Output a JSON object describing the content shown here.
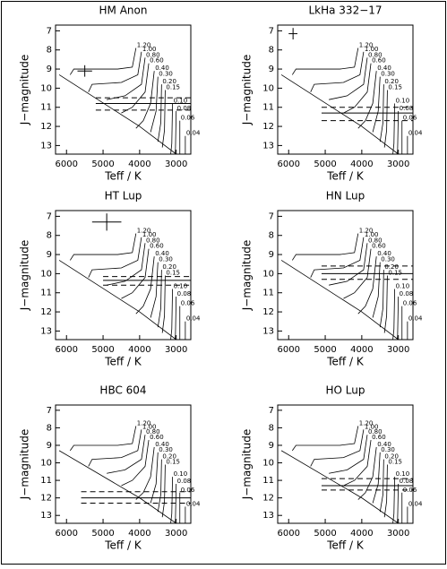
{
  "chart_data": [
    {
      "type": "line",
      "title": "HM Anon",
      "xlabel": "Teff / K",
      "ylabel": "J−magnitude",
      "xlim": [
        6300,
        2600
      ],
      "ylim": [
        13.45,
        6.7
      ],
      "xticks": [
        6000,
        5000,
        4000,
        3000
      ],
      "yticks": [
        7,
        8,
        9,
        10,
        11,
        12,
        13
      ],
      "obs": {
        "teff_from": 5200,
        "j": 10.8,
        "j_range": [
          10.5,
          11.15
        ]
      },
      "cross": {
        "teff": 5500,
        "j": 9.1,
        "teff_err": 200,
        "j_err": 0.3
      }
    },
    {
      "type": "line",
      "title": "LkHa 332−17",
      "xlabel": "Teff / K",
      "ylabel": "J−magnitude",
      "xlim": [
        6300,
        2600
      ],
      "ylim": [
        13.45,
        6.7
      ],
      "xticks": [
        6000,
        5000,
        4000,
        3000
      ],
      "yticks": [
        7,
        8,
        9,
        10,
        11,
        12,
        13
      ],
      "obs": {
        "teff_from": 5100,
        "j": 11.3,
        "j_range": [
          11.0,
          11.7
        ]
      },
      "cross": {
        "teff": 5880,
        "j": 7.15,
        "teff_err": 120,
        "j_err": 0.3
      }
    },
    {
      "type": "line",
      "title": "HT Lup",
      "xlabel": "Teff / K",
      "ylabel": "J−magnitude",
      "xlim": [
        6300,
        2600
      ],
      "ylim": [
        13.45,
        6.7
      ],
      "xticks": [
        6000,
        5000,
        4000,
        3000
      ],
      "yticks": [
        7,
        8,
        9,
        10,
        11,
        12,
        13
      ],
      "obs": {
        "teff_from": 5000,
        "j": 10.35,
        "j_range": [
          10.15,
          10.6
        ]
      },
      "cross": {
        "teff": 4900,
        "j": 7.3,
        "teff_err": 400,
        "j_err": 0.45
      }
    },
    {
      "type": "line",
      "title": "HN Lup",
      "xlabel": "Teff / K",
      "ylabel": "J−magnitude",
      "xlim": [
        6300,
        2600
      ],
      "ylim": [
        13.45,
        6.7
      ],
      "xticks": [
        6000,
        5000,
        4000,
        3000
      ],
      "yticks": [
        7,
        8,
        9,
        10,
        11,
        12,
        13
      ],
      "obs": {
        "teff_from": 5100,
        "j": 10.0,
        "j_range": [
          9.6,
          10.3
        ]
      }
    },
    {
      "type": "line",
      "title": "HBC 604",
      "xlabel": "Teff / K",
      "ylabel": "J−magnitude",
      "xlim": [
        6300,
        2600
      ],
      "ylim": [
        13.45,
        6.7
      ],
      "xticks": [
        6000,
        5000,
        4000,
        3000
      ],
      "yticks": [
        7,
        8,
        9,
        10,
        11,
        12,
        13
      ],
      "obs": {
        "teff_from": 5600,
        "j": 12.0,
        "j_range": [
          11.65,
          12.3
        ]
      }
    },
    {
      "type": "line",
      "title": "HO Lup",
      "xlabel": "Teff / K",
      "ylabel": "J−magnitude",
      "xlim": [
        6300,
        2600
      ],
      "ylim": [
        13.45,
        6.7
      ],
      "xticks": [
        6000,
        5000,
        4000,
        3000
      ],
      "yticks": [
        7,
        8,
        9,
        10,
        11,
        12,
        13
      ],
      "obs": {
        "teff_from": 5100,
        "j": 11.3,
        "j_range": [
          10.9,
          11.55
        ]
      }
    }
  ],
  "tracks": [
    {
      "mass": "1.20",
      "teff": [
        4100,
        4200,
        4600,
        5800,
        5900
      ],
      "j": [
        7.9,
        8.9,
        9.0,
        9.0,
        9.3
      ]
    },
    {
      "mass": "1.00",
      "teff": [
        3950,
        4050,
        4500,
        5300,
        5400
      ],
      "j": [
        8.1,
        9.3,
        9.7,
        9.8,
        10.2
      ]
    },
    {
      "mass": "0.80",
      "teff": [
        3850,
        3950,
        4400,
        4900
      ],
      "j": [
        8.4,
        9.8,
        10.4,
        10.6
      ]
    },
    {
      "mass": "0.60",
      "teff": [
        3750,
        3850,
        4200,
        4500
      ],
      "j": [
        8.7,
        10.2,
        11.0,
        11.3
      ]
    },
    {
      "mass": "0.40",
      "teff": [
        3600,
        3700,
        3900,
        4100
      ],
      "j": [
        9.1,
        10.8,
        11.7,
        12.1
      ]
    },
    {
      "mass": "0.30",
      "teff": [
        3500,
        3550,
        3700
      ],
      "j": [
        9.4,
        11.2,
        12.3
      ]
    },
    {
      "mass": "0.20",
      "teff": [
        3400,
        3420,
        3500
      ],
      "j": [
        9.8,
        11.8,
        12.8
      ]
    },
    {
      "mass": "0.15",
      "teff": [
        3300,
        3320,
        3380
      ],
      "j": [
        10.1,
        12.2,
        13.1
      ]
    },
    {
      "mass": "0.10",
      "teff": [
        3100,
        3120,
        3150
      ],
      "j": [
        10.8,
        12.9,
        13.45
      ]
    },
    {
      "mass": "0.08",
      "teff": [
        3000,
        3020,
        3030
      ],
      "j": [
        11.2,
        13.2,
        13.45
      ]
    },
    {
      "mass": "0.06",
      "teff": [
        2900,
        2900
      ],
      "j": [
        11.7,
        13.45
      ]
    },
    {
      "mass": "0.04",
      "teff": [
        2750,
        2750
      ],
      "j": [
        12.5,
        13.45
      ]
    }
  ],
  "zams": {
    "teff": [
      6200,
      4000,
      3000
    ],
    "j": [
      9.3,
      12.0,
      13.45
    ]
  }
}
